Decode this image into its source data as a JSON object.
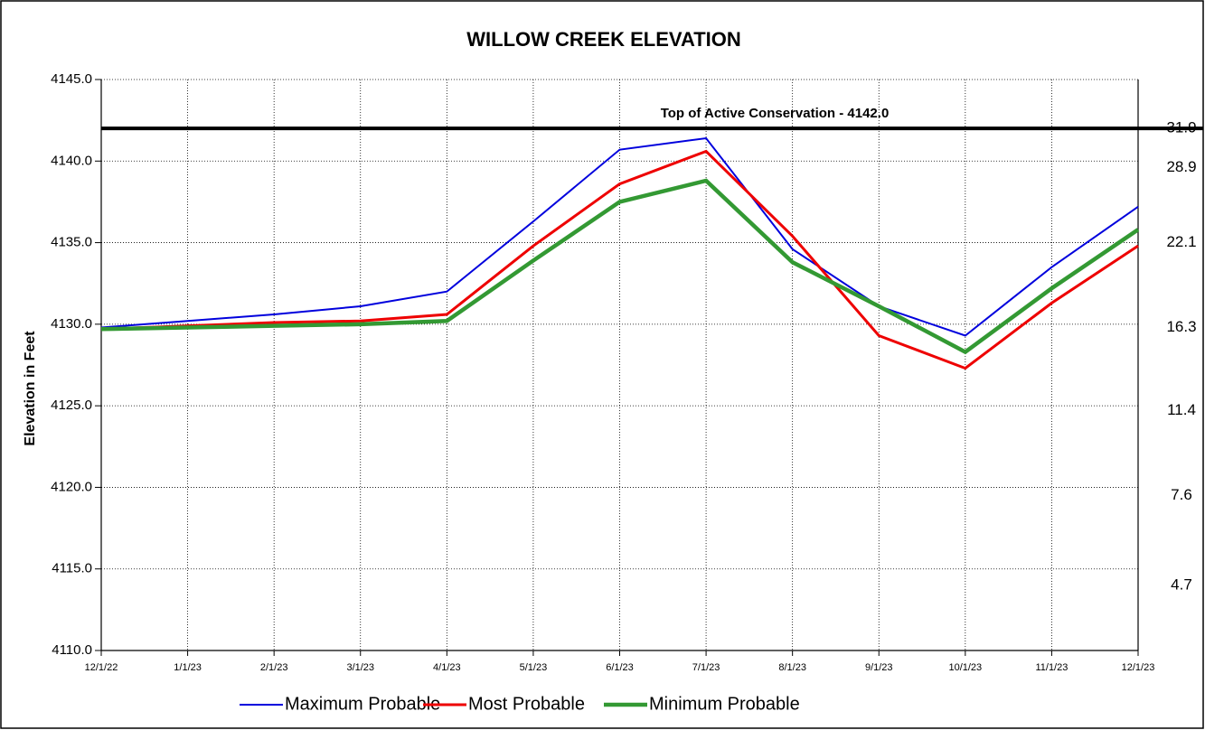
{
  "chart_data": {
    "type": "line",
    "title": "WILLOW CREEK ELEVATION",
    "y_label": "Elevation in Feet",
    "categories": [
      "12/1/22",
      "1/1/23",
      "2/1/23",
      "3/1/23",
      "4/1/23",
      "5/1/23",
      "6/1/23",
      "7/1/23",
      "8/1/23",
      "9/1/23",
      "10/1/23",
      "11/1/23",
      "12/1/23"
    ],
    "series": [
      {
        "name": "Maximum Probable",
        "color": "#0000dd",
        "width": 2,
        "values": [
          4129.8,
          4130.2,
          4130.6,
          4131.1,
          4132.0,
          4136.3,
          4140.7,
          4141.4,
          4134.6,
          4131.1,
          4129.3,
          4133.5,
          4137.2
        ]
      },
      {
        "name": "Most Probable",
        "color": "#ee0000",
        "width": 3,
        "values": [
          4129.7,
          4129.9,
          4130.1,
          4130.2,
          4130.6,
          4134.8,
          4138.6,
          4140.6,
          4135.4,
          4129.3,
          4127.3,
          4131.3,
          4134.8
        ]
      },
      {
        "name": "Minimum Probable",
        "color": "#339933",
        "width": 4.5,
        "values": [
          4129.7,
          4129.8,
          4129.9,
          4130.0,
          4130.2,
          4133.9,
          4137.5,
          4138.8,
          4133.8,
          4131.1,
          4128.3,
          4132.2,
          4135.8
        ]
      }
    ],
    "ylim": [
      4110,
      4145
    ],
    "yticks": [
      {
        "value": 4110,
        "label": "4110.0"
      },
      {
        "value": 4115,
        "label": "4115.0"
      },
      {
        "value": 4120,
        "label": "4120.0"
      },
      {
        "value": 4125,
        "label": "4125.0"
      },
      {
        "value": 4130,
        "label": "4130.0"
      },
      {
        "value": 4135,
        "label": "4135.0"
      },
      {
        "value": 4140,
        "label": "4140.0"
      },
      {
        "value": 4145,
        "label": "4145.0"
      }
    ],
    "reference_line": {
      "value": 4142.0,
      "label": "Top of Active Conservation - 4142.0"
    },
    "storage_labels": [
      {
        "label": "31.9",
        "elevation": 4142
      },
      {
        "label": "28.9",
        "elevation": 4139.6
      },
      {
        "label": "22.1",
        "elevation": 4135
      },
      {
        "label": "16.3",
        "elevation": 4129.8
      },
      {
        "label": "11.4",
        "elevation": 4124.7
      },
      {
        "label": "7.6",
        "elevation": 4119.5
      },
      {
        "label": "4.7",
        "elevation": 4114
      }
    ],
    "grid": true,
    "legend": "bottom"
  }
}
